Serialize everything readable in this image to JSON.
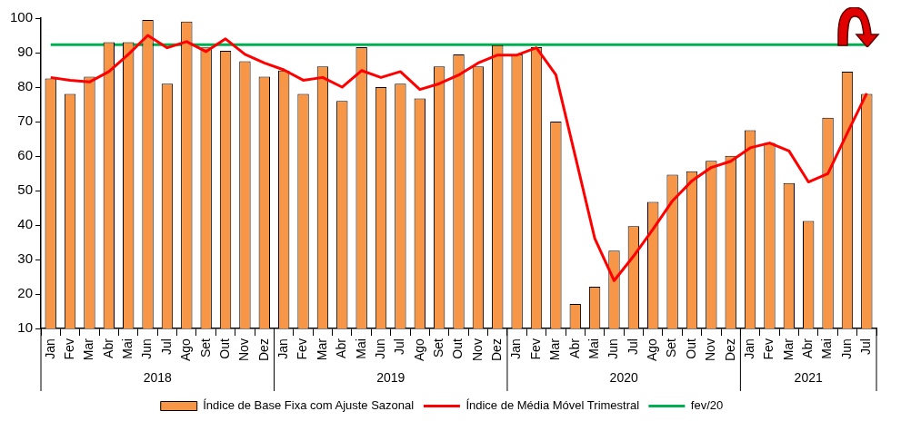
{
  "chart_data": {
    "type": "bar",
    "categories": [
      "Jan",
      "Fev",
      "Mar",
      "Abr",
      "Mai",
      "Jun",
      "Jul",
      "Ago",
      "Set",
      "Out",
      "Nov",
      "Dez",
      "Jan",
      "Fev",
      "Mar",
      "Abr",
      "Mai",
      "Jun",
      "Jul",
      "Ago",
      "Set",
      "Out",
      "Nov",
      "Dez",
      "Jan",
      "Fev",
      "Mar",
      "Abr",
      "Mai",
      "Jun",
      "Jul",
      "Ago",
      "Set",
      "Out",
      "Nov",
      "Dez",
      "Jan",
      "Fev",
      "Mar",
      "Abr",
      "Mai",
      "Jun",
      "Jul"
    ],
    "series": [
      {
        "name": "Índice de Base Fixa com Ajuste Sazonal",
        "color": "#f79646",
        "values": [
          82.5,
          78,
          83,
          93,
          93,
          99.5,
          81,
          99,
          91.5,
          90.5,
          87.5,
          83,
          84.8,
          78,
          86,
          76,
          91.6,
          80,
          81,
          76.7,
          86,
          89.5,
          86,
          92.2,
          89.5,
          91.6,
          70,
          17.1,
          22.1,
          32.6,
          39.7,
          46.7,
          54.6,
          55.6,
          58.6,
          60.1,
          67.5,
          63.8,
          52.2,
          41.2,
          71.1,
          84.5,
          78
        ]
      },
      {
        "name": "Índice de Média Móvel Trimestral",
        "type": "line",
        "color": "#ff0000",
        "marker": "none",
        "values": [
          82.8,
          82,
          81.5,
          84.5,
          89.5,
          95,
          91.4,
          93.2,
          90.3,
          94,
          89.5,
          87,
          85,
          82,
          82.8,
          80,
          84.8,
          82.8,
          84.5,
          79.3,
          81,
          83.5,
          87,
          89.3,
          89.3,
          91.4,
          83.6,
          60,
          36.2,
          23.9,
          31,
          38.8,
          47,
          52.8,
          56.7,
          58.5,
          62.4,
          63.8,
          61.5,
          52.5,
          54.9,
          66.7,
          78.2
        ]
      }
    ],
    "ref_lines": [
      {
        "axis": "y",
        "value": 92.3,
        "label": "fev/20",
        "color": "#00b050"
      }
    ],
    "annotations": [
      "2018",
      "2019",
      "2020",
      "2021"
    ],
    "ylim": [
      10,
      100
    ],
    "yticks": [
      10,
      20,
      30,
      40,
      50,
      60,
      70,
      80,
      90,
      100
    ],
    "legend": "bottom"
  }
}
